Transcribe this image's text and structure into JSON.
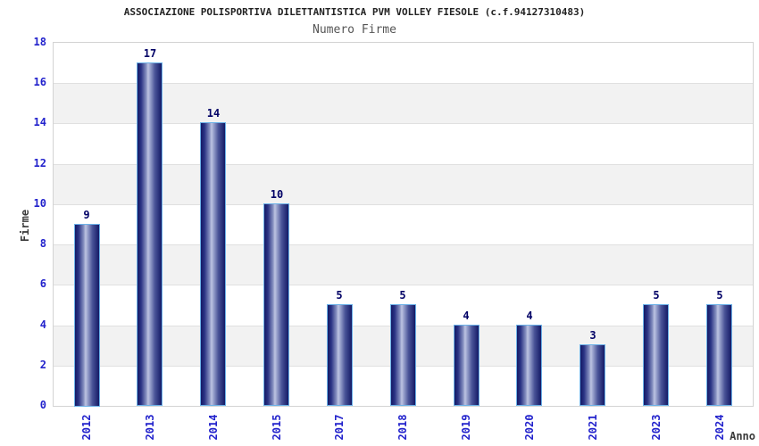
{
  "chart_data": {
    "type": "bar",
    "title": "ASSOCIAZIONE POLISPORTIVA DILETTANTISTICA PVM VOLLEY FIESOLE (c.f.94127310483)",
    "subtitle": "Numero Firme",
    "categories": [
      "2012",
      "2013",
      "2014",
      "2015",
      "2017",
      "2018",
      "2019",
      "2020",
      "2021",
      "2023",
      "2024"
    ],
    "values": [
      9,
      17,
      14,
      10,
      5,
      5,
      4,
      4,
      3,
      5,
      5
    ],
    "xlabel": "Anno",
    "ylabel": "Firme",
    "ylim": [
      0,
      18
    ],
    "ytick_step": 2,
    "ytick_labels": [
      "0",
      "2",
      "4",
      "6",
      "8",
      "10",
      "12",
      "14",
      "16",
      "18"
    ],
    "grid": true,
    "legend_position": "none",
    "bar_value_labels_shown": true,
    "colors": {
      "tick_label_blue": "#2222cc",
      "bar_value_navy": "#000066",
      "title_color": "#222222",
      "subtitle_gray": "#555555",
      "axis_label_gray": "#3a3a3a",
      "band_gray": "#f2f2f2",
      "grid_line": "#e0e0e0",
      "plot_border": "#d3d3d3",
      "bar_border_lightblue": "#6cb2e8",
      "bar_gradient_dark": "#141a66",
      "bar_gradient_light": "#bdc4e2"
    }
  }
}
